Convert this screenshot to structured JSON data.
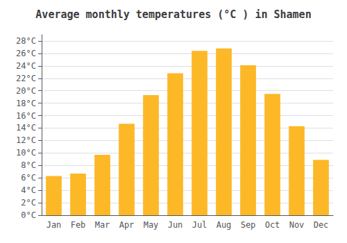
{
  "chart_data": {
    "type": "bar",
    "title": "Average monthly temperatures (°C ) in Shamen",
    "categories": [
      "Jan",
      "Feb",
      "Mar",
      "Apr",
      "May",
      "Jun",
      "Jul",
      "Aug",
      "Sep",
      "Oct",
      "Nov",
      "Dec"
    ],
    "values": [
      6.3,
      6.7,
      9.7,
      14.7,
      19.3,
      22.8,
      26.4,
      26.8,
      24.1,
      19.5,
      14.3,
      8.9
    ],
    "color": "#FDB827",
    "ylim": [
      0,
      29
    ],
    "yticks": [
      {
        "value": 0,
        "label": "0°C"
      },
      {
        "value": 2,
        "label": "2°C"
      },
      {
        "value": 4,
        "label": "4°C"
      },
      {
        "value": 6,
        "label": "6°C"
      },
      {
        "value": 8,
        "label": "8°C"
      },
      {
        "value": 10,
        "label": "10°C"
      },
      {
        "value": 12,
        "label": "12°C"
      },
      {
        "value": 14,
        "label": "14°C"
      },
      {
        "value": 16,
        "label": "16°C"
      },
      {
        "value": 18,
        "label": "18°C"
      },
      {
        "value": 20,
        "label": "20°C"
      },
      {
        "value": 22,
        "label": "22°C"
      },
      {
        "value": 24,
        "label": "24°C"
      },
      {
        "value": 26,
        "label": "26°C"
      },
      {
        "value": 28,
        "label": "28°C"
      }
    ],
    "grid": true
  }
}
